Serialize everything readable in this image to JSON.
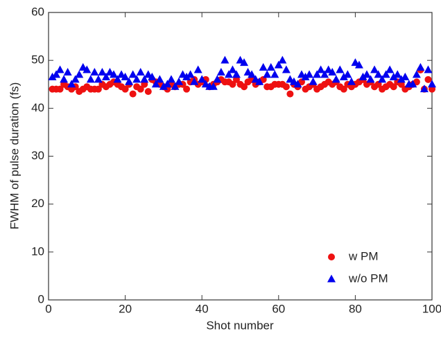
{
  "chart_data": {
    "type": "scatter",
    "xlabel": "Shot number",
    "ylabel": "FWHM of pulse duration (fs)",
    "x": [
      1,
      2,
      3,
      4,
      5,
      6,
      7,
      8,
      9,
      10,
      11,
      12,
      13,
      14,
      15,
      16,
      17,
      18,
      19,
      20,
      21,
      22,
      23,
      24,
      25,
      26,
      27,
      28,
      29,
      30,
      31,
      32,
      33,
      34,
      35,
      36,
      37,
      38,
      39,
      40,
      41,
      42,
      43,
      44,
      45,
      46,
      47,
      48,
      49,
      50,
      51,
      52,
      53,
      54,
      55,
      56,
      57,
      58,
      59,
      60,
      61,
      62,
      63,
      64,
      65,
      66,
      67,
      68,
      69,
      70,
      71,
      72,
      73,
      74,
      75,
      76,
      77,
      78,
      79,
      80,
      81,
      82,
      83,
      84,
      85,
      86,
      87,
      88,
      89,
      90,
      91,
      92,
      93,
      94,
      95,
      96,
      97,
      98,
      99,
      100
    ],
    "series": [
      {
        "name": "w PM",
        "color": "#ee1111",
        "marker": "circle",
        "values": [
          44,
          44,
          44,
          45,
          44.5,
          44,
          44.5,
          43.5,
          44,
          44.5,
          44,
          44,
          44,
          45,
          44.5,
          45,
          45.5,
          45,
          44.5,
          44,
          45,
          43,
          44.5,
          44,
          45,
          43.5,
          46,
          45.5,
          45,
          44.5,
          44,
          45,
          44.5,
          45,
          45,
          44,
          45.5,
          46,
          45,
          45.5,
          46,
          44.5,
          45,
          45.5,
          46,
          45.5,
          45.5,
          45,
          46,
          45,
          44.5,
          45.5,
          46,
          45,
          45.5,
          46,
          44.5,
          44.5,
          45,
          45,
          45,
          44.5,
          43,
          45,
          44.5,
          45.5,
          44,
          44.5,
          45,
          44,
          44.5,
          45,
          45.5,
          45,
          45.5,
          44.5,
          44,
          45,
          44.5,
          45,
          45.5,
          46,
          45,
          45.5,
          44.5,
          45,
          44,
          44.5,
          45,
          44.5,
          45.5,
          45,
          44,
          44.5,
          45,
          45.5,
          48,
          44,
          46,
          44
        ]
      },
      {
        "name": "w/o PM",
        "color": "#0000ee",
        "marker": "triangle",
        "values": [
          46.5,
          47,
          48,
          46,
          47.5,
          45,
          46,
          47,
          48.5,
          48,
          46,
          47.5,
          46,
          47.5,
          46.5,
          47.5,
          47,
          46,
          47,
          46.5,
          45.5,
          47,
          46,
          47.5,
          46,
          47,
          46.5,
          45,
          46,
          44.5,
          45,
          46,
          44.5,
          45.5,
          47,
          46.5,
          47,
          45.5,
          48,
          46,
          45,
          44.5,
          44.5,
          46,
          47.5,
          50,
          47,
          48,
          47,
          50,
          49.5,
          47.5,
          47,
          46,
          45.5,
          48.5,
          47,
          48.5,
          47,
          49,
          50,
          48,
          46,
          45.5,
          45,
          47,
          46.5,
          47,
          45.5,
          47,
          48,
          47,
          48,
          47.5,
          46,
          48,
          46.5,
          47,
          45.5,
          49.5,
          49,
          46.5,
          47,
          46,
          48,
          47,
          46,
          47,
          48,
          46.5,
          47,
          46,
          46.5,
          45,
          45,
          47,
          48.5,
          44,
          48,
          45
        ]
      }
    ],
    "xlim": [
      0,
      100
    ],
    "xticks": [
      0,
      20,
      40,
      60,
      80,
      100
    ],
    "ylim": [
      0,
      60
    ],
    "yticks": [
      0,
      10,
      20,
      30,
      40,
      50,
      60
    ],
    "legend": "lower right"
  }
}
